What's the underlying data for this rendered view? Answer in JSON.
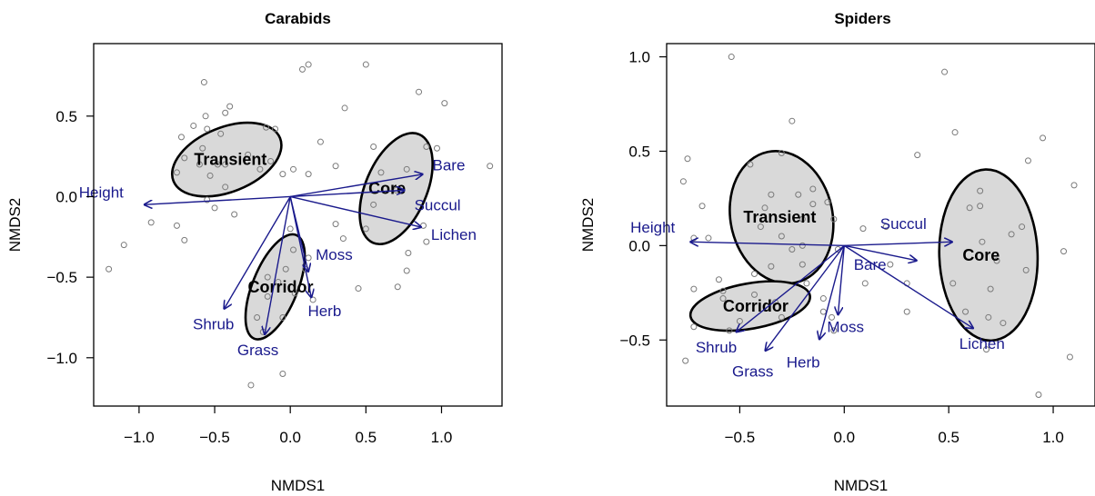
{
  "chart_data": [
    {
      "type": "scatter",
      "title": "Carabids",
      "xlabel": "NMDS1",
      "ylabel": "NMDS2",
      "xlim": [
        -1.3,
        1.4
      ],
      "ylim": [
        -1.3,
        0.95
      ],
      "xticks": [
        -1.0,
        -0.5,
        0.0,
        0.5,
        1.0
      ],
      "xtick_labels": [
        "−1.0",
        "−0.5",
        "0.0",
        "0.5",
        "1.0"
      ],
      "yticks": [
        -1.0,
        -0.5,
        0.0,
        0.5
      ],
      "ytick_labels": [
        "−1.0",
        "−0.5",
        "0.0",
        "0.5"
      ],
      "points": [
        [
          -1.2,
          -0.45
        ],
        [
          -1.1,
          -0.3
        ],
        [
          -0.92,
          -0.16
        ],
        [
          -0.75,
          -0.18
        ],
        [
          -0.7,
          -0.27
        ],
        [
          -0.75,
          0.15
        ],
        [
          -0.72,
          0.37
        ],
        [
          -0.7,
          0.24
        ],
        [
          -0.64,
          0.44
        ],
        [
          -0.57,
          0.71
        ],
        [
          -0.56,
          0.5
        ],
        [
          -0.55,
          0.42
        ],
        [
          -0.58,
          0.3
        ],
        [
          -0.6,
          0.2
        ],
        [
          -0.53,
          0.13
        ],
        [
          -0.55,
          -0.02
        ],
        [
          -0.5,
          -0.07
        ],
        [
          -0.46,
          0.39
        ],
        [
          -0.43,
          0.52
        ],
        [
          -0.4,
          0.56
        ],
        [
          -0.48,
          0.2
        ],
        [
          -0.43,
          0.06
        ],
        [
          -0.43,
          0.2
        ],
        [
          -0.37,
          -0.11
        ],
        [
          -0.28,
          0.26
        ],
        [
          -0.2,
          0.17
        ],
        [
          -0.16,
          0.43
        ],
        [
          -0.1,
          0.42
        ],
        [
          -0.05,
          0.14
        ],
        [
          -0.13,
          0.22
        ],
        [
          0.08,
          0.79
        ],
        [
          0.12,
          0.82
        ],
        [
          0.02,
          0.17
        ],
        [
          0.12,
          0.14
        ],
        [
          0.2,
          0.34
        ],
        [
          0.3,
          0.19
        ],
        [
          0.36,
          0.55
        ],
        [
          0.3,
          -0.17
        ],
        [
          0.35,
          -0.26
        ],
        [
          0.5,
          0.82
        ],
        [
          0.55,
          0.31
        ],
        [
          0.5,
          -0.2
        ],
        [
          0.45,
          -0.57
        ],
        [
          0.6,
          0.15
        ],
        [
          0.55,
          -0.05
        ],
        [
          0.7,
          0.04
        ],
        [
          0.77,
          0.17
        ],
        [
          0.85,
          0.65
        ],
        [
          0.9,
          0.31
        ],
        [
          0.97,
          0.3
        ],
        [
          1.02,
          0.58
        ],
        [
          0.88,
          -0.18
        ],
        [
          0.9,
          -0.28
        ],
        [
          1.32,
          0.19
        ],
        [
          0.78,
          -0.35
        ],
        [
          0.77,
          -0.46
        ],
        [
          0.71,
          -0.56
        ],
        [
          0.0,
          -0.2
        ],
        [
          0.02,
          -0.33
        ],
        [
          -0.03,
          -0.45
        ],
        [
          -0.08,
          -0.53
        ],
        [
          -0.15,
          -0.5
        ],
        [
          -0.15,
          -0.62
        ],
        [
          -0.05,
          -0.75
        ],
        [
          -0.22,
          -0.75
        ],
        [
          -0.18,
          -0.84
        ],
        [
          -0.05,
          -1.1
        ],
        [
          -0.26,
          -1.17
        ],
        [
          0.03,
          -0.6
        ],
        [
          0.1,
          -0.45
        ],
        [
          0.15,
          -0.64
        ],
        [
          0.12,
          -0.38
        ]
      ],
      "ellipses": [
        {
          "label": "Transient",
          "cx": -0.42,
          "cy": 0.23,
          "rx": 0.38,
          "ry": 0.2,
          "angle": 22
        },
        {
          "label": "Core",
          "cx": 0.7,
          "cy": 0.05,
          "rx": 0.39,
          "ry": 0.19,
          "angle": 67
        },
        {
          "label": "Corridor",
          "cx": -0.1,
          "cy": -0.56,
          "rx": 0.37,
          "ry": 0.14,
          "angle": 68
        }
      ],
      "vectors": [
        {
          "label": "Height",
          "x": -0.97,
          "y": -0.05
        },
        {
          "label": "Bare",
          "x": 0.88,
          "y": 0.14
        },
        {
          "label": "Succul",
          "x": 0.76,
          "y": 0.04
        },
        {
          "label": "Lichen",
          "x": 0.87,
          "y": -0.19
        },
        {
          "label": "Moss",
          "x": 0.12,
          "y": -0.47
        },
        {
          "label": "Herb",
          "x": 0.14,
          "y": -0.63
        },
        {
          "label": "Shrub",
          "x": -0.44,
          "y": -0.7
        },
        {
          "label": "Grass",
          "x": -0.17,
          "y": -0.86
        }
      ]
    },
    {
      "type": "scatter",
      "title": "Spiders",
      "xlabel": "NMDS1",
      "ylabel": "NMDS2",
      "xlim": [
        -0.85,
        1.2
      ],
      "ylim": [
        -0.85,
        1.07
      ],
      "xticks": [
        -0.5,
        0.0,
        0.5,
        1.0
      ],
      "xtick_labels": [
        "−0.5",
        "0.0",
        "0.5",
        "1.0"
      ],
      "yticks": [
        -0.5,
        0.0,
        0.5,
        1.0
      ],
      "ytick_labels": [
        "−0.5",
        "0.0",
        "0.5",
        "1.0"
      ],
      "points": [
        [
          -0.54,
          1.0
        ],
        [
          -0.75,
          0.46
        ],
        [
          -0.77,
          0.34
        ],
        [
          -0.68,
          0.21
        ],
        [
          -0.72,
          0.04
        ],
        [
          -0.72,
          -0.23
        ],
        [
          -0.72,
          -0.43
        ],
        [
          -0.76,
          -0.61
        ],
        [
          -0.65,
          0.04
        ],
        [
          -0.6,
          -0.18
        ],
        [
          -0.58,
          -0.24
        ],
        [
          -0.55,
          -0.45
        ],
        [
          -0.45,
          0.43
        ],
        [
          -0.4,
          0.1
        ],
        [
          -0.38,
          0.2
        ],
        [
          -0.35,
          0.27
        ],
        [
          -0.3,
          0.49
        ],
        [
          -0.3,
          0.05
        ],
        [
          -0.22,
          0.27
        ],
        [
          -0.2,
          0.0
        ],
        [
          -0.25,
          0.66
        ],
        [
          -0.15,
          0.3
        ],
        [
          -0.15,
          0.22
        ],
        [
          -0.2,
          0.14
        ],
        [
          -0.2,
          -0.1
        ],
        [
          -0.25,
          -0.02
        ],
        [
          -0.35,
          -0.11
        ],
        [
          -0.43,
          -0.15
        ],
        [
          -0.05,
          0.14
        ],
        [
          -0.08,
          0.23
        ],
        [
          -0.03,
          -0.02
        ],
        [
          -0.1,
          -0.35
        ],
        [
          -0.05,
          -0.45
        ],
        [
          -0.06,
          -0.38
        ],
        [
          -0.33,
          -0.3
        ],
        [
          -0.43,
          -0.26
        ],
        [
          -0.5,
          -0.4
        ],
        [
          -0.58,
          -0.28
        ],
        [
          -0.3,
          -0.38
        ],
        [
          -0.18,
          -0.2
        ],
        [
          -0.1,
          -0.28
        ],
        [
          0.09,
          0.09
        ],
        [
          0.1,
          -0.2
        ],
        [
          0.2,
          0.1
        ],
        [
          0.22,
          -0.1
        ],
        [
          0.3,
          -0.2
        ],
        [
          0.35,
          0.48
        ],
        [
          0.48,
          0.92
        ],
        [
          0.53,
          0.6
        ],
        [
          0.3,
          -0.35
        ],
        [
          0.6,
          0.2
        ],
        [
          0.65,
          0.29
        ],
        [
          0.65,
          0.21
        ],
        [
          0.66,
          0.02
        ],
        [
          0.73,
          -0.08
        ],
        [
          0.8,
          0.06
        ],
        [
          0.85,
          0.1
        ],
        [
          0.87,
          -0.13
        ],
        [
          0.7,
          -0.23
        ],
        [
          0.69,
          -0.38
        ],
        [
          0.76,
          -0.41
        ],
        [
          0.68,
          -0.55
        ],
        [
          0.88,
          0.45
        ],
        [
          0.95,
          0.57
        ],
        [
          1.05,
          -0.03
        ],
        [
          1.1,
          0.32
        ],
        [
          1.08,
          -0.59
        ],
        [
          0.93,
          -0.79
        ],
        [
          0.58,
          -0.35
        ],
        [
          0.52,
          -0.2
        ]
      ],
      "ellipses": [
        {
          "label": "Transient",
          "cx": -0.3,
          "cy": 0.15,
          "rx": 0.32,
          "ry": 0.27,
          "angle": -78
        },
        {
          "label": "Core",
          "cx": 0.69,
          "cy": -0.05,
          "rx": 0.41,
          "ry": 0.26,
          "angle": -88
        },
        {
          "label": "Corridor",
          "cx": -0.45,
          "cy": -0.32,
          "rx": 0.29,
          "ry": 0.12,
          "angle": 10
        }
      ],
      "vectors": [
        {
          "label": "Height",
          "x": -0.74,
          "y": 0.02
        },
        {
          "label": "Succul",
          "x": 0.52,
          "y": 0.02
        },
        {
          "label": "Bare",
          "x": 0.35,
          "y": -0.08
        },
        {
          "label": "Lichen",
          "x": 0.62,
          "y": -0.44
        },
        {
          "label": "Moss",
          "x": -0.03,
          "y": -0.37
        },
        {
          "label": "Herb",
          "x": -0.12,
          "y": -0.5
        },
        {
          "label": "Shrub",
          "x": -0.52,
          "y": -0.46
        },
        {
          "label": "Grass",
          "x": -0.38,
          "y": -0.56
        }
      ]
    }
  ],
  "colors": {
    "points": "#7a7a7a",
    "vectors": "#1a1a8c",
    "ellipse_fill": "#d9d9d9",
    "ellipse_stroke": "#000000"
  }
}
